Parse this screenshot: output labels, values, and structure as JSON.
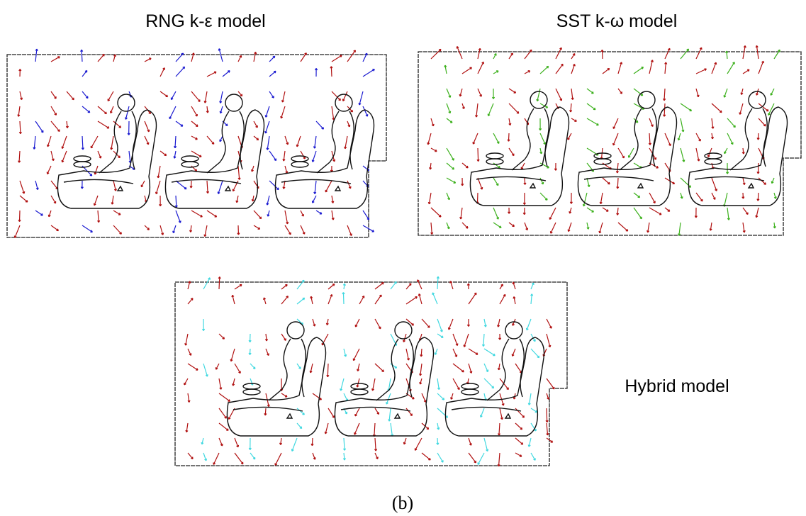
{
  "panels": [
    {
      "label": "RNG k-ε model"
    },
    {
      "label": "SST k-ω model"
    },
    {
      "label": "Hybrid model"
    }
  ],
  "caption": "(b)"
}
